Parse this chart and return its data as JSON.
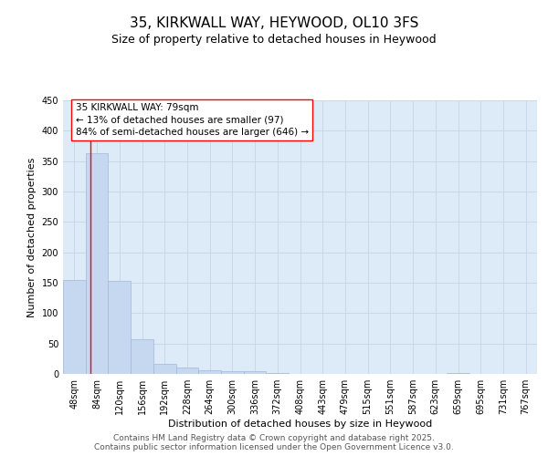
{
  "title": "35, KIRKWALL WAY, HEYWOOD, OL10 3FS",
  "subtitle": "Size of property relative to detached houses in Heywood",
  "xlabel": "Distribution of detached houses by size in Heywood",
  "ylabel": "Number of detached properties",
  "footer_line1": "Contains HM Land Registry data © Crown copyright and database right 2025.",
  "footer_line2": "Contains public sector information licensed under the Open Government Licence v3.0.",
  "categories": [
    "48sqm",
    "84sqm",
    "120sqm",
    "156sqm",
    "192sqm",
    "228sqm",
    "264sqm",
    "300sqm",
    "336sqm",
    "372sqm",
    "408sqm",
    "443sqm",
    "479sqm",
    "515sqm",
    "551sqm",
    "587sqm",
    "623sqm",
    "659sqm",
    "695sqm",
    "731sqm",
    "767sqm"
  ],
  "values": [
    155,
    363,
    153,
    57,
    17,
    11,
    6,
    5,
    5,
    1,
    0,
    0,
    0,
    0,
    0,
    0,
    0,
    1,
    0,
    0,
    0
  ],
  "bar_color": "#c5d8f0",
  "bar_edge_color": "#a0b8d8",
  "grid_color": "#c8d8e8",
  "background_color": "#ddeaf7",
  "red_line_x": 0.72,
  "annotation_text": "35 KIRKWALL WAY: 79sqm\n← 13% of detached houses are smaller (97)\n84% of semi-detached houses are larger (646) →",
  "ylim": [
    0,
    450
  ],
  "yticks": [
    0,
    50,
    100,
    150,
    200,
    250,
    300,
    350,
    400,
    450
  ],
  "title_fontsize": 11,
  "subtitle_fontsize": 9,
  "axis_label_fontsize": 8,
  "tick_fontsize": 7,
  "annotation_fontsize": 7.5,
  "footer_fontsize": 6.5
}
